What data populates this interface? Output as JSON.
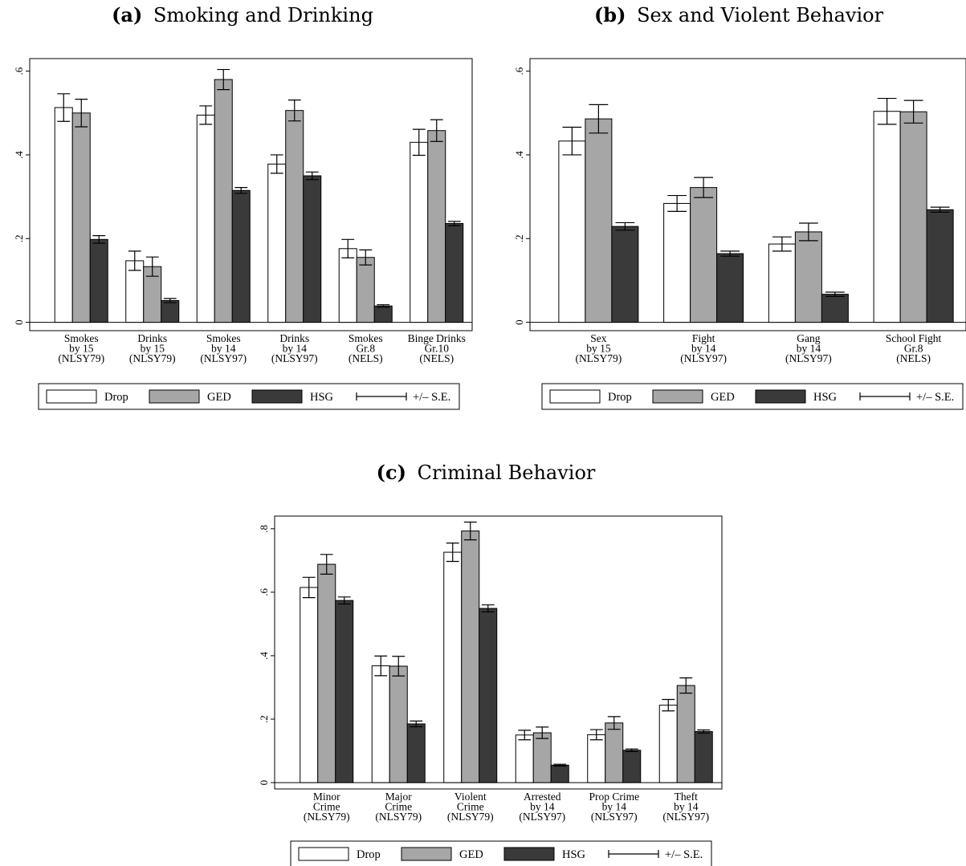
{
  "legend": {
    "items": [
      "Drop",
      "GED",
      "HSG",
      "+/– S.E."
    ]
  },
  "colors": {
    "Drop": "#ffffff",
    "GED": "#a6a6a6",
    "HSG": "#3a3a3a",
    "frame": "#000000"
  },
  "chart_data": [
    {
      "type": "bar",
      "panel_label": "(a)",
      "title": "Smoking and Drinking",
      "categories": [
        [
          "Smokes",
          "by 15",
          "(NLSY79)"
        ],
        [
          "Drinks",
          "by 15",
          "(NLSY79)"
        ],
        [
          "Smokes",
          "by 14",
          "(NLSY97)"
        ],
        [
          "Drinks",
          "by 14",
          "(NLSY97)"
        ],
        [
          "Smokes",
          "Gr.8",
          "(NELS)"
        ],
        [
          "Binge Drinks",
          "Gr.10",
          "(NELS)"
        ]
      ],
      "series": [
        {
          "name": "Drop",
          "values": [
            0.513,
            0.147,
            0.495,
            0.378,
            0.176,
            0.43
          ],
          "se": [
            0.033,
            0.023,
            0.022,
            0.022,
            0.022,
            0.031
          ]
        },
        {
          "name": "GED",
          "values": [
            0.5,
            0.133,
            0.58,
            0.506,
            0.155,
            0.458
          ],
          "se": [
            0.033,
            0.023,
            0.024,
            0.025,
            0.018,
            0.026
          ]
        },
        {
          "name": "HSG",
          "values": [
            0.198,
            0.052,
            0.315,
            0.35,
            0.039,
            0.236
          ],
          "se": [
            0.009,
            0.005,
            0.007,
            0.009,
            0.003,
            0.005
          ]
        }
      ],
      "yticks": [
        0,
        0.2,
        0.4,
        0.6
      ],
      "ytick_labels": [
        "0",
        ".2",
        ".4",
        ".6"
      ],
      "ylim": [
        -0.02,
        0.63
      ]
    },
    {
      "type": "bar",
      "panel_label": "(b)",
      "title": "Sex and Violent Behavior",
      "categories": [
        [
          "Sex",
          "by 15",
          "(NLSY79)"
        ],
        [
          "Fight",
          "by 14",
          "(NLSY97)"
        ],
        [
          "Gang",
          "by 14",
          "(NLSY97)"
        ],
        [
          "School Fight",
          "Gr.8",
          "(NELS)"
        ]
      ],
      "series": [
        {
          "name": "Drop",
          "values": [
            0.433,
            0.284,
            0.187,
            0.504
          ],
          "se": [
            0.033,
            0.019,
            0.017,
            0.031
          ]
        },
        {
          "name": "GED",
          "values": [
            0.486,
            0.322,
            0.216,
            0.503
          ],
          "se": [
            0.034,
            0.024,
            0.021,
            0.027
          ]
        },
        {
          "name": "HSG",
          "values": [
            0.229,
            0.164,
            0.067,
            0.269
          ],
          "se": [
            0.009,
            0.006,
            0.005,
            0.006
          ]
        }
      ],
      "yticks": [
        0,
        0.2,
        0.4,
        0.6
      ],
      "ytick_labels": [
        "0",
        ".2",
        ".4",
        ".6"
      ],
      "ylim": [
        -0.02,
        0.63
      ]
    },
    {
      "type": "bar",
      "panel_label": "(c)",
      "title": "Criminal Behavior",
      "categories": [
        [
          "Minor",
          "Crime",
          "(NLSY79)"
        ],
        [
          "Major",
          "Crime",
          "(NLSY79)"
        ],
        [
          "Violent",
          "Crime",
          "(NLSY79)"
        ],
        [
          "Arrested",
          "by 14",
          "(NLSY97)"
        ],
        [
          "Prop Crime",
          "by 14",
          "(NLSY97)"
        ],
        [
          "Theft",
          "by 14",
          "(NLSY97)"
        ]
      ],
      "series": [
        {
          "name": "Drop",
          "values": [
            0.615,
            0.368,
            0.726,
            0.15,
            0.151,
            0.244
          ],
          "se": [
            0.032,
            0.031,
            0.029,
            0.015,
            0.016,
            0.018
          ]
        },
        {
          "name": "GED",
          "values": [
            0.688,
            0.367,
            0.793,
            0.157,
            0.188,
            0.306
          ],
          "se": [
            0.031,
            0.031,
            0.028,
            0.018,
            0.02,
            0.024
          ]
        },
        {
          "name": "HSG",
          "values": [
            0.574,
            0.185,
            0.549,
            0.055,
            0.102,
            0.161
          ],
          "se": [
            0.011,
            0.009,
            0.011,
            0.003,
            0.004,
            0.005
          ]
        }
      ],
      "yticks": [
        0,
        0.2,
        0.4,
        0.6,
        0.8
      ],
      "ytick_labels": [
        "0",
        ".2",
        ".4",
        ".6",
        ".8"
      ],
      "ylim": [
        -0.02,
        0.84
      ]
    }
  ]
}
